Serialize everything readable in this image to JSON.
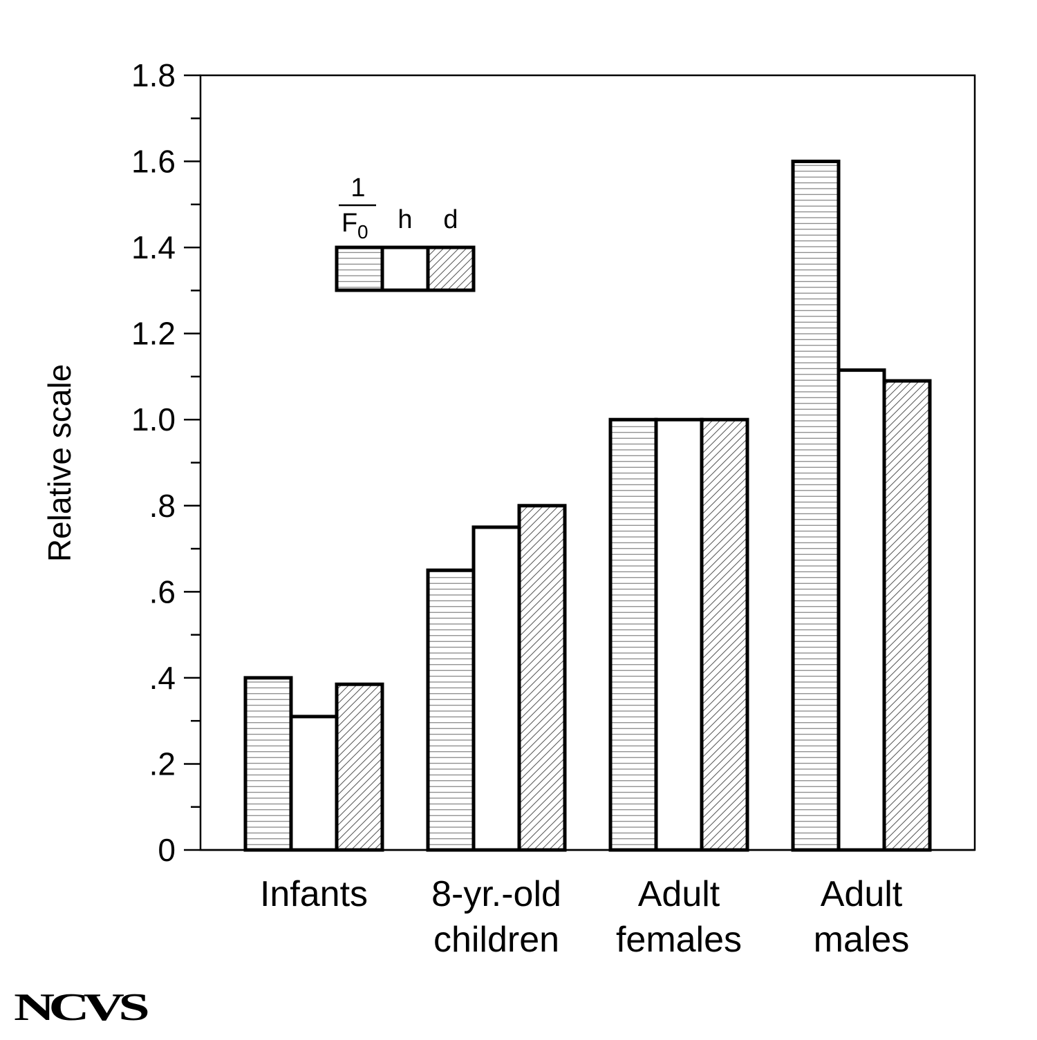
{
  "chart_data": {
    "type": "bar",
    "ylabel": "Relative scale",
    "ylim": [
      0,
      1.8
    ],
    "yticks": [
      {
        "value": 0,
        "label": "0"
      },
      {
        "value": 0.2,
        "label": ".2"
      },
      {
        "value": 0.4,
        "label": ".4"
      },
      {
        "value": 0.6,
        "label": ".6"
      },
      {
        "value": 0.8,
        "label": ".8"
      },
      {
        "value": 1.0,
        "label": "1.0"
      },
      {
        "value": 1.2,
        "label": "1.2"
      },
      {
        "value": 1.4,
        "label": "1.4"
      },
      {
        "value": 1.6,
        "label": "1.6"
      },
      {
        "value": 1.8,
        "label": "1.8"
      }
    ],
    "minor_tick_step": 0.1,
    "categories": [
      [
        "Infants"
      ],
      [
        "8-yr.-old",
        "children"
      ],
      [
        "Adult",
        "females"
      ],
      [
        "Adult",
        "males"
      ]
    ],
    "series": [
      {
        "key": "inv_f0",
        "pattern": "horizontal-lines",
        "values": [
          0.4,
          0.65,
          1.0,
          1.6
        ]
      },
      {
        "key": "h",
        "pattern": "none",
        "values": [
          0.31,
          0.75,
          1.0,
          1.115
        ]
      },
      {
        "key": "d",
        "pattern": "diagonal-lines",
        "values": [
          0.385,
          0.8,
          1.0,
          1.09
        ]
      }
    ],
    "legend": {
      "placement": "top-left",
      "labels": {
        "inv_f0_numerator": "1",
        "inv_f0_base": "F",
        "inv_f0_subscript": "0",
        "h": "h",
        "d": "d"
      }
    },
    "grid": false
  },
  "logo": {
    "text": "NCVS"
  }
}
